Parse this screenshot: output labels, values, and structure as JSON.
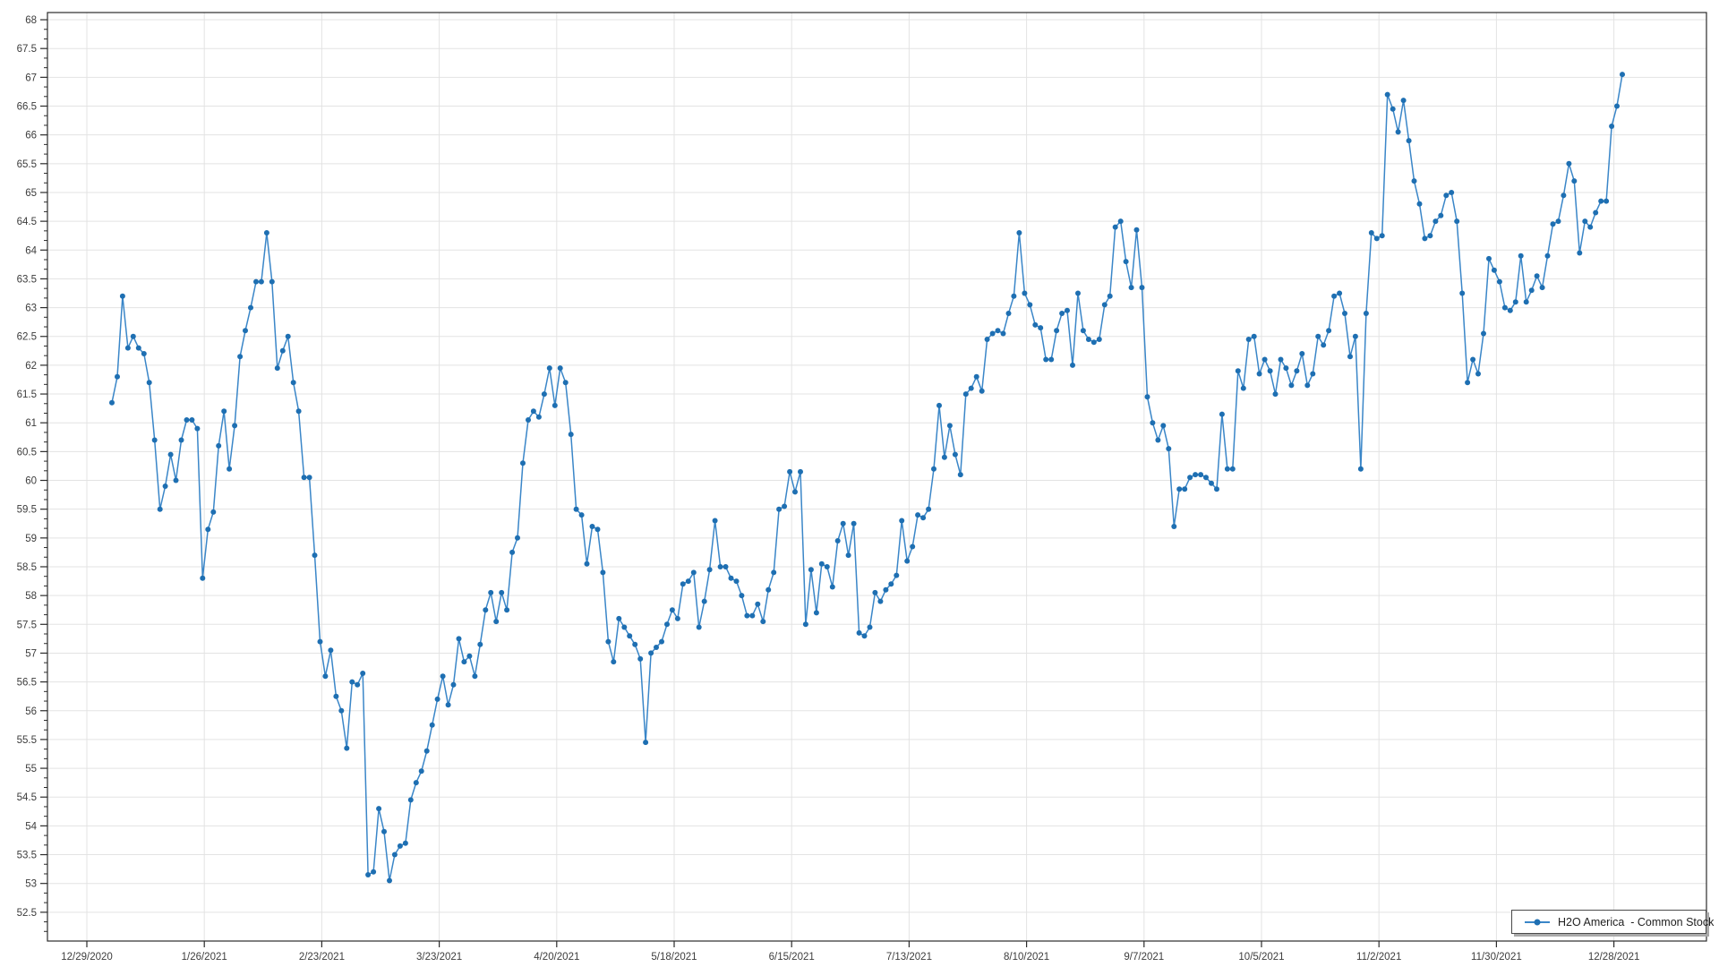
{
  "chart_data": {
    "type": "line",
    "title": "",
    "legend_position": "bottom-right",
    "grid": "both",
    "colors": {
      "line": "#3a86c8",
      "marker": "#1e6fb2",
      "grid": "#e3e3e3",
      "frame": "#2b2b2b",
      "tick": "#2b2b2b",
      "label": "#3d3d3d",
      "legend_border": "#4a4a4a",
      "legend_shadow": "#a9a9a9",
      "background": "#ffffff"
    },
    "ylim": [
      52,
      68.125
    ],
    "y_tick_step": 0.5,
    "y_tick_labels": [
      "68",
      "67.5",
      "67",
      "66.5",
      "66",
      "65.5",
      "65",
      "64.5",
      "64",
      "63.5",
      "63",
      "62.5",
      "62",
      "61.5",
      "61",
      "60.5",
      "60",
      "59.5",
      "59",
      "58.5",
      "58",
      "57.5",
      "57",
      "56.5",
      "56",
      "55.5",
      "55",
      "54.5",
      "54",
      "53.5",
      "53",
      "52.5"
    ],
    "x_tick_labels": [
      "12/29/2020",
      "1/26/2021",
      "2/23/2021",
      "3/23/2021",
      "4/20/2021",
      "5/18/2021",
      "6/15/2021",
      "7/13/2021",
      "8/10/2021",
      "9/7/2021",
      "10/5/2021",
      "11/2/2021",
      "11/30/2021",
      "12/28/2021"
    ],
    "series": [
      {
        "name": "H2O America  - Common Stock",
        "values": [
          61.35,
          61.8,
          63.2,
          62.3,
          62.5,
          62.3,
          62.2,
          61.7,
          60.7,
          59.5,
          59.9,
          60.45,
          60.0,
          60.7,
          61.05,
          61.05,
          60.9,
          58.3,
          59.15,
          59.45,
          60.6,
          61.2,
          60.2,
          60.95,
          62.15,
          62.6,
          63.0,
          63.45,
          63.45,
          64.3,
          63.45,
          61.95,
          62.25,
          62.5,
          61.7,
          61.2,
          60.05,
          60.05,
          58.7,
          57.2,
          56.6,
          57.05,
          56.25,
          56.0,
          55.35,
          56.5,
          56.45,
          56.65,
          53.15,
          53.2,
          54.3,
          53.9,
          53.05,
          53.5,
          53.65,
          53.7,
          54.45,
          54.75,
          54.95,
          55.3,
          55.75,
          56.2,
          56.6,
          56.1,
          56.45,
          57.25,
          56.85,
          56.95,
          56.6,
          57.15,
          57.75,
          58.05,
          57.55,
          58.05,
          57.75,
          58.75,
          59.0,
          60.3,
          61.05,
          61.2,
          61.1,
          61.5,
          61.95,
          61.3,
          61.95,
          61.7,
          60.8,
          59.5,
          59.4,
          58.55,
          59.2,
          59.15,
          58.4,
          57.2,
          56.85,
          57.6,
          57.45,
          57.3,
          57.15,
          56.9,
          55.45,
          57.0,
          57.1,
          57.2,
          57.5,
          57.75,
          57.6,
          58.2,
          58.25,
          58.4,
          57.45,
          57.9,
          58.45,
          59.3,
          58.5,
          58.5,
          58.3,
          58.25,
          58.0,
          57.65,
          57.65,
          57.85,
          57.55,
          58.1,
          58.4,
          59.5,
          59.55,
          60.15,
          59.8,
          60.15,
          57.5,
          58.45,
          57.7,
          58.55,
          58.5,
          58.15,
          58.95,
          59.25,
          58.7,
          59.25,
          57.35,
          57.3,
          57.45,
          58.05,
          57.9,
          58.1,
          58.2,
          58.35,
          59.3,
          58.6,
          58.85,
          59.4,
          59.35,
          59.5,
          60.2,
          61.3,
          60.4,
          60.95,
          60.45,
          60.1,
          61.5,
          61.6,
          61.8,
          61.55,
          62.45,
          62.55,
          62.6,
          62.55,
          62.9,
          63.2,
          64.3,
          63.25,
          63.05,
          62.7,
          62.65,
          62.1,
          62.1,
          62.6,
          62.9,
          62.95,
          62.0,
          63.25,
          62.6,
          62.45,
          62.4,
          62.45,
          63.05,
          63.2,
          64.4,
          64.5,
          63.8,
          63.35,
          64.35,
          63.35,
          61.45,
          61.0,
          60.7,
          60.95,
          60.55,
          59.2,
          59.85,
          59.85,
          60.05,
          60.1,
          60.1,
          60.05,
          59.95,
          59.85,
          61.15,
          60.2,
          60.2,
          61.9,
          61.6,
          62.45,
          62.5,
          61.85,
          62.1,
          61.9,
          61.5,
          62.1,
          61.95,
          61.65,
          61.9,
          62.2,
          61.65,
          61.85,
          62.5,
          62.35,
          62.6,
          63.2,
          63.25,
          62.9,
          62.15,
          62.5,
          60.2,
          62.9,
          64.3,
          64.2,
          64.25,
          66.7,
          66.45,
          66.05,
          66.6,
          65.9,
          65.2,
          64.8,
          64.2,
          64.25,
          64.5,
          64.6,
          64.95,
          65.0,
          64.5,
          63.25,
          61.7,
          62.1,
          61.85,
          62.55,
          63.85,
          63.65,
          63.45,
          63.0,
          62.95,
          63.1,
          63.9,
          63.1,
          63.3,
          63.55,
          63.35,
          63.9,
          64.45,
          64.5,
          64.95,
          65.5,
          65.2,
          63.95,
          64.5,
          64.4,
          64.65,
          64.85,
          64.85,
          66.15,
          66.5,
          67.05
        ]
      }
    ]
  }
}
